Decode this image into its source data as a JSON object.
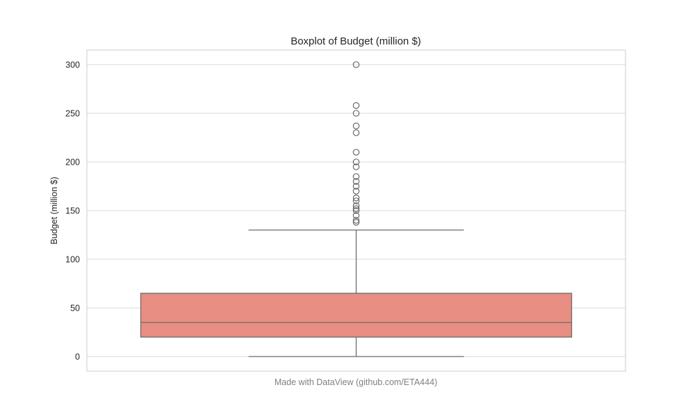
{
  "chart_data": {
    "type": "box",
    "title": "Boxplot of Budget (million $)",
    "xlabel": "",
    "ylabel": "Budget (million $)",
    "ylim": [
      -15,
      316
    ],
    "yticks": [
      0,
      50,
      100,
      150,
      200,
      250,
      300
    ],
    "grid": true,
    "legend": "none",
    "box": {
      "min": 0,
      "q1": 20,
      "median": 35,
      "q3": 65,
      "max": 130,
      "color": "#e88e82",
      "edge_color": "#6b6b6b"
    },
    "outliers": [
      138,
      140,
      145,
      150,
      152,
      155,
      160,
      163,
      170,
      175,
      180,
      185,
      195,
      200,
      210,
      230,
      237,
      250,
      258,
      300
    ]
  },
  "footer": "Made with DataView (github.com/ETA444)",
  "colors": {
    "grid": "#d9d9d9",
    "frame": "#cccccc",
    "text": "#262626",
    "footer": "#808080"
  }
}
